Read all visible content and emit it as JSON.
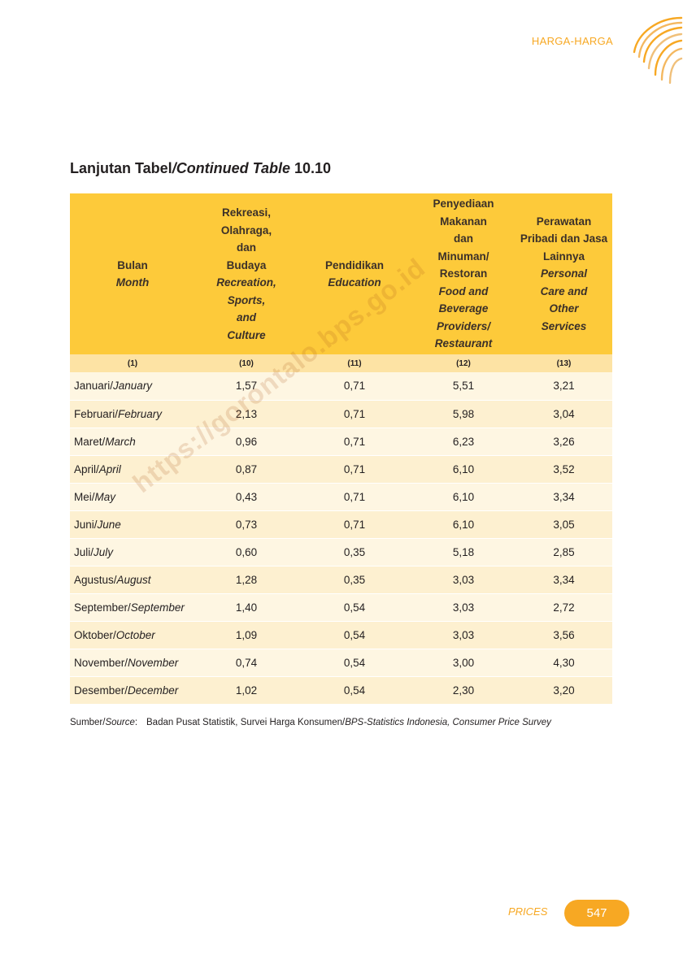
{
  "header": {
    "section": "HARGA-HARGA"
  },
  "title": {
    "prefix": "Lanjutan Tabel",
    "italic": "/Continued Table",
    "number": " 10.10"
  },
  "table": {
    "columns": [
      {
        "id_label": "Bulan",
        "en_label": "Month",
        "num": "(1)"
      },
      {
        "id_label": "Rekreasi, Olahraga, dan Budaya",
        "en_label": "Recreation, Sports, and Culture",
        "num": "(10)"
      },
      {
        "id_label": "Pendidikan",
        "en_label": "Education",
        "num": "(11)"
      },
      {
        "id_label": "Penyediaan Makanan dan Minuman/ Restoran",
        "en_label": "Food and Beverage Providers/ Restaurant",
        "num": "(12)"
      },
      {
        "id_label": "Perawatan Pribadi dan Jasa Lainnya",
        "en_label": "Personal Care and Other Services",
        "num": "(13)"
      }
    ],
    "rows": [
      {
        "month_id": "Januari/",
        "month_en": "January",
        "values": [
          "1,57",
          "0,71",
          "5,51",
          "3,21"
        ]
      },
      {
        "month_id": "Februari/",
        "month_en": "February",
        "values": [
          "2,13",
          "0,71",
          "5,98",
          "3,04"
        ]
      },
      {
        "month_id": "Maret/",
        "month_en": "March",
        "values": [
          "0,96",
          "0,71",
          "6,23",
          "3,26"
        ]
      },
      {
        "month_id": "April/",
        "month_en": "April",
        "values": [
          "0,87",
          "0,71",
          "6,10",
          "3,52"
        ]
      },
      {
        "month_id": "Mei/",
        "month_en": "May",
        "values": [
          "0,43",
          "0,71",
          "6,10",
          "3,34"
        ]
      },
      {
        "month_id": "Juni/",
        "month_en": "June",
        "values": [
          "0,73",
          "0,71",
          "6,10",
          "3,05"
        ]
      },
      {
        "month_id": "Juli/",
        "month_en": "July",
        "values": [
          "0,60",
          "0,35",
          "5,18",
          "2,85"
        ]
      },
      {
        "month_id": "Agustus/",
        "month_en": "August",
        "values": [
          "1,28",
          "0,35",
          "3,03",
          "3,34"
        ]
      },
      {
        "month_id": "September/",
        "month_en": "September",
        "values": [
          "1,40",
          "0,54",
          "3,03",
          "2,72"
        ]
      },
      {
        "month_id": "Oktober/",
        "month_en": "October",
        "values": [
          "1,09",
          "0,54",
          "3,03",
          "3,56"
        ]
      },
      {
        "month_id": "November/",
        "month_en": "November",
        "values": [
          "0,74",
          "0,54",
          "3,00",
          "4,30"
        ]
      },
      {
        "month_id": "Desember/",
        "month_en": "December",
        "values": [
          "1,02",
          "0,54",
          "2,30",
          "3,20"
        ]
      }
    ]
  },
  "source": {
    "label_id": "Sumber/",
    "label_en": "Source",
    "label_colon": ":",
    "text_id": "Badan Pusat Statistik, Survei Harga Konsumen/",
    "text_en": "BPS-Statistics Indonesia, Consumer Price Survey"
  },
  "watermark": "https://gorontalo.bps.go.id",
  "footer": {
    "label": "PRICES",
    "page": "547"
  },
  "colors": {
    "accent": "#f7a823",
    "header_bg": "#fdca3a",
    "num_row_bg": "#fde3a4",
    "row_bg": "#fef6e2"
  }
}
